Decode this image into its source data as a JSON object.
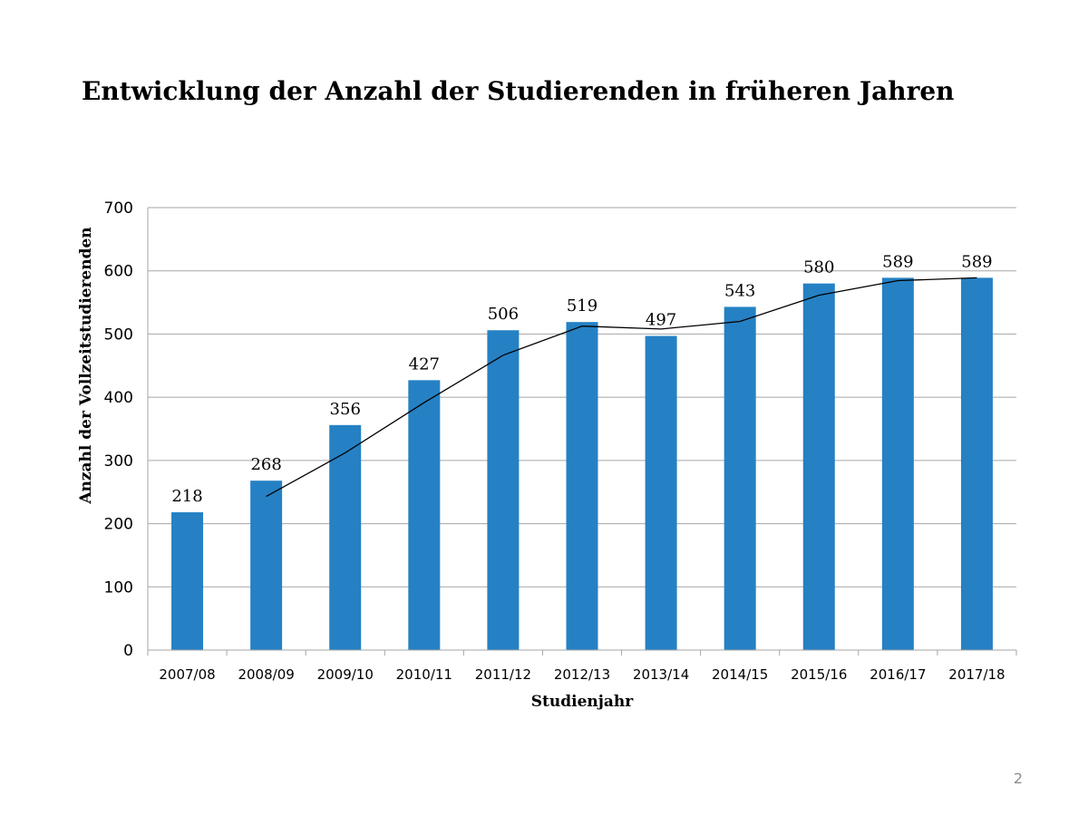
{
  "slide": {
    "title": "Entwicklung der Anzahl der Studierenden in früheren Jahren",
    "page_number": "2"
  },
  "colors": {
    "bar": "#2581c4",
    "gridline": "#a6a6a6",
    "trendline": "#000000"
  },
  "chart_data": {
    "type": "bar",
    "categories": [
      "2007/08",
      "2008/09",
      "2009/10",
      "2010/11",
      "2011/12",
      "2012/13",
      "2013/14",
      "2014/15",
      "2015/16",
      "2016/17",
      "2017/18"
    ],
    "values": [
      218,
      268,
      356,
      427,
      506,
      519,
      497,
      543,
      580,
      589,
      589
    ],
    "xlabel": "Studienjahr",
    "ylabel": "Anzahl der Vollzeitstudierenden",
    "ylim": [
      0,
      700
    ],
    "yticks": [
      0,
      100,
      200,
      300,
      400,
      500,
      600,
      700
    ],
    "grid": true,
    "data_labels": true,
    "trendline": {
      "type": "moving-average",
      "period": 2
    }
  }
}
